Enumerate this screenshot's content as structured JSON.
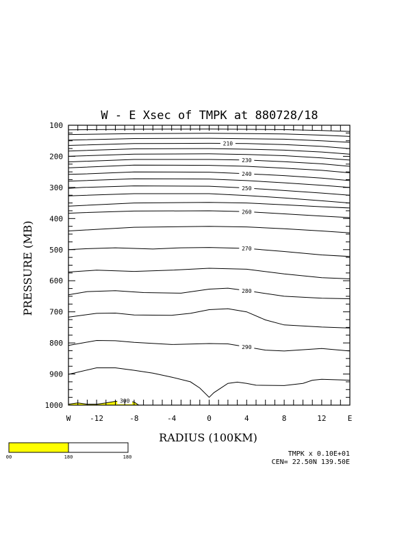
{
  "chart_data": {
    "type": "contour",
    "title": "W - E Xsec of TMPK at 880728/18",
    "xlabel": "RADIUS (100KM)",
    "ylabel": "PRESSURE (MB)",
    "xlim": [
      -15,
      15
    ],
    "ylim": [
      1000,
      100
    ],
    "y_ticks": [
      "100",
      "200",
      "300",
      "400",
      "500",
      "600",
      "700",
      "800",
      "900",
      "1000"
    ],
    "x_ticks": [
      {
        "x": -15,
        "label": "W"
      },
      {
        "x": -12,
        "label": "-12"
      },
      {
        "x": -8,
        "label": "-8"
      },
      {
        "x": -4,
        "label": "-4"
      },
      {
        "x": 0,
        "label": "0"
      },
      {
        "x": 4,
        "label": "4"
      },
      {
        "x": 8,
        "label": "8"
      },
      {
        "x": 12,
        "label": "12"
      },
      {
        "x": 15,
        "label": "E"
      }
    ],
    "contours": [
      {
        "p": [
          [
            -15,
            115
          ],
          [
            -8,
            113
          ],
          [
            0,
            112
          ],
          [
            8,
            114
          ],
          [
            12,
            117
          ],
          [
            15,
            120
          ]
        ]
      },
      {
        "p": [
          [
            -15,
            130
          ],
          [
            -8,
            127
          ],
          [
            0,
            126
          ],
          [
            8,
            128
          ],
          [
            12,
            132
          ],
          [
            15,
            136
          ]
        ]
      },
      {
        "p": [
          [
            -15,
            148
          ],
          [
            -8,
            143
          ],
          [
            0,
            142
          ],
          [
            8,
            145
          ],
          [
            12,
            150
          ],
          [
            15,
            155
          ]
        ]
      },
      {
        "label": "210",
        "lx": 2,
        "p": [
          [
            -15,
            165
          ],
          [
            -8,
            159
          ],
          [
            0,
            158
          ],
          [
            4,
            159
          ],
          [
            8,
            162
          ],
          [
            12,
            168
          ],
          [
            15,
            175
          ]
        ]
      },
      {
        "p": [
          [
            -15,
            183
          ],
          [
            -8,
            176
          ],
          [
            0,
            175
          ],
          [
            4,
            177
          ],
          [
            8,
            180
          ],
          [
            12,
            186
          ],
          [
            15,
            193
          ]
        ]
      },
      {
        "p": [
          [
            -15,
            200
          ],
          [
            -8,
            193
          ],
          [
            0,
            192
          ],
          [
            4,
            194
          ],
          [
            8,
            198
          ],
          [
            12,
            205
          ],
          [
            15,
            212
          ]
        ]
      },
      {
        "label": "230",
        "lx": 4,
        "p": [
          [
            -15,
            218
          ],
          [
            -8,
            210
          ],
          [
            0,
            210
          ],
          [
            4,
            212
          ],
          [
            8,
            217
          ],
          [
            12,
            224
          ],
          [
            15,
            232
          ]
        ]
      },
      {
        "p": [
          [
            -15,
            237
          ],
          [
            -8,
            228
          ],
          [
            0,
            229
          ],
          [
            4,
            232
          ],
          [
            8,
            238
          ],
          [
            12,
            245
          ],
          [
            15,
            253
          ]
        ]
      },
      {
        "label": "240",
        "lx": 4,
        "p": [
          [
            -15,
            258
          ],
          [
            -13.5,
            257
          ],
          [
            -8,
            250
          ],
          [
            0,
            251
          ],
          [
            4,
            256
          ],
          [
            8,
            262
          ],
          [
            12,
            270
          ],
          [
            15,
            278
          ]
        ]
      },
      {
        "p": [
          [
            -15,
            280
          ],
          [
            -8,
            272
          ],
          [
            0,
            273
          ],
          [
            4,
            278
          ],
          [
            8,
            285
          ],
          [
            12,
            293
          ],
          [
            15,
            300
          ]
        ]
      },
      {
        "label": "250",
        "lx": 4,
        "p": [
          [
            -15,
            303
          ],
          [
            -13.5,
            300
          ],
          [
            -8,
            295
          ],
          [
            0,
            296
          ],
          [
            4,
            302
          ],
          [
            8,
            310
          ],
          [
            12,
            318
          ],
          [
            15,
            325
          ]
        ]
      },
      {
        "p": [
          [
            -15,
            327
          ],
          [
            -8,
            320
          ],
          [
            0,
            320
          ],
          [
            4,
            326
          ],
          [
            8,
            334
          ],
          [
            12,
            343
          ],
          [
            15,
            350
          ]
        ]
      },
      {
        "p": [
          [
            -15,
            360
          ],
          [
            -8,
            350
          ],
          [
            0,
            348
          ],
          [
            4,
            350
          ],
          [
            8,
            356
          ],
          [
            12,
            362
          ],
          [
            15,
            366
          ]
        ]
      },
      {
        "label": "260",
        "lx": 4,
        "p": [
          [
            -15,
            383
          ],
          [
            -13.5,
            381
          ],
          [
            -8,
            376
          ],
          [
            0,
            375
          ],
          [
            4,
            378
          ],
          [
            8,
            385
          ],
          [
            12,
            392
          ],
          [
            15,
            397
          ]
        ]
      },
      {
        "p": [
          [
            -15,
            440
          ],
          [
            -8,
            428
          ],
          [
            0,
            425
          ],
          [
            4,
            427
          ],
          [
            8,
            433
          ],
          [
            12,
            440
          ],
          [
            15,
            446
          ]
        ]
      },
      {
        "label": "270",
        "lx": 4,
        "p": [
          [
            -15,
            500
          ],
          [
            -13,
            497
          ],
          [
            -10,
            494
          ],
          [
            -6,
            498
          ],
          [
            -3,
            494
          ],
          [
            0,
            493
          ],
          [
            4,
            496
          ],
          [
            8,
            506
          ],
          [
            12,
            517
          ],
          [
            15,
            522
          ]
        ]
      },
      {
        "p": [
          [
            -15,
            572
          ],
          [
            -12,
            566
          ],
          [
            -8,
            570
          ],
          [
            -4,
            566
          ],
          [
            0,
            560
          ],
          [
            4,
            563
          ],
          [
            8,
            578
          ],
          [
            12,
            590
          ],
          [
            15,
            594
          ]
        ]
      },
      {
        "label": "280",
        "lx": 4,
        "p": [
          [
            -15,
            645
          ],
          [
            -13,
            635
          ],
          [
            -10,
            632
          ],
          [
            -7,
            638
          ],
          [
            -3,
            640
          ],
          [
            0,
            627
          ],
          [
            2,
            624
          ],
          [
            4,
            632
          ],
          [
            8,
            650
          ],
          [
            12,
            656
          ],
          [
            15,
            658
          ]
        ]
      },
      {
        "p": [
          [
            -15,
            717
          ],
          [
            -12,
            705
          ],
          [
            -10,
            704
          ],
          [
            -8,
            710
          ],
          [
            -4,
            711
          ],
          [
            -2,
            705
          ],
          [
            0,
            693
          ],
          [
            2,
            690
          ],
          [
            4,
            700
          ],
          [
            6,
            726
          ],
          [
            8,
            742
          ],
          [
            12,
            749
          ],
          [
            15,
            752
          ]
        ]
      },
      {
        "label": "290",
        "lx": 4,
        "p": [
          [
            -15,
            808
          ],
          [
            -13.5,
            800
          ],
          [
            -12,
            792
          ],
          [
            -10,
            793
          ],
          [
            -8,
            798
          ],
          [
            -4,
            805
          ],
          [
            0,
            802
          ],
          [
            2,
            803
          ],
          [
            4,
            813
          ],
          [
            6,
            823
          ],
          [
            8,
            826
          ],
          [
            12,
            818
          ],
          [
            15,
            826
          ]
        ]
      },
      {
        "p": [
          [
            -15,
            901
          ],
          [
            -12,
            880
          ],
          [
            -10,
            880
          ],
          [
            -8,
            888
          ],
          [
            -6,
            897
          ],
          [
            -4,
            910
          ],
          [
            -2,
            925
          ],
          [
            -1,
            945
          ],
          [
            0,
            975
          ],
          [
            0.5,
            960
          ],
          [
            2,
            930
          ],
          [
            3,
            926
          ],
          [
            4,
            930
          ],
          [
            5,
            936
          ],
          [
            8,
            937
          ],
          [
            10,
            930
          ],
          [
            11,
            920
          ],
          [
            12,
            917
          ],
          [
            15,
            920
          ]
        ]
      },
      {
        "label": "300",
        "lx": -9,
        "p": [
          [
            -15,
            997
          ],
          [
            -14,
            993
          ],
          [
            -13,
            997
          ],
          [
            -12,
            997
          ],
          [
            -11,
            993
          ],
          [
            -10,
            988
          ],
          [
            -9,
            986
          ],
          [
            -8,
            990
          ],
          [
            -7.5,
            1000
          ]
        ]
      }
    ],
    "shaded": {
      "color": "#ffff00",
      "above_value": 300
    },
    "colorbar": {
      "ticks": [
        "00",
        "180",
        "180"
      ],
      "color": "#ffff00"
    },
    "info": [
      "TMPK x  0.10E+01",
      "CEN= 22.50N  139.50E"
    ]
  }
}
